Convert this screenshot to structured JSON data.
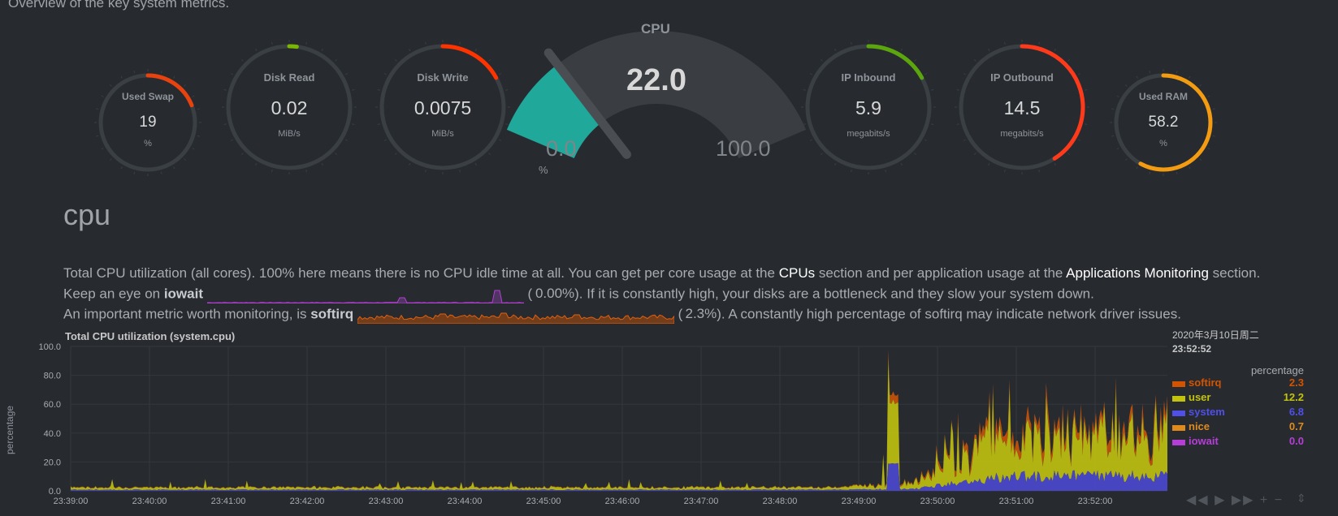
{
  "subtitle": "Overview of the key system metrics.",
  "gauges": [
    {
      "label": "Used Swap",
      "value": "19",
      "unit": "%",
      "fraction": 0.19,
      "color": "#e8420f"
    },
    {
      "label": "Disk Read",
      "value": "0.02",
      "unit": "MiB/s",
      "fraction": 0.02,
      "color": "#7ab800"
    },
    {
      "label": "Disk Write",
      "value": "0.0075",
      "unit": "MiB/s",
      "fraction": 0.17,
      "color": "#ff3300"
    },
    {
      "label": "IP Inbound",
      "value": "5.9",
      "unit": "megabits/s",
      "fraction": 0.17,
      "color": "#5ba50d"
    },
    {
      "label": "IP Outbound",
      "value": "14.5",
      "unit": "megabits/s",
      "fraction": 0.41,
      "color": "#ff3a1a"
    },
    {
      "label": "Used RAM",
      "value": "58.2",
      "unit": "%",
      "fraction": 0.58,
      "color": "#f39c12"
    }
  ],
  "cpu_gauge": {
    "title": "CPU",
    "value": "22.0",
    "min": "0.0",
    "max": "100.0",
    "unit": "%",
    "fraction": 0.22,
    "color": "#20a89a"
  },
  "section": {
    "title": "cpu",
    "line1_a": "Total CPU utilization (all cores). 100% here means there is no CPU idle time at all. You can get per core usage at the ",
    "line1_link1": "CPUs",
    "line1_b": " section and per application usage at the ",
    "line1_link2": "Applications Monitoring",
    "line1_c": " section.",
    "line2_a": "Keep an eye on ",
    "line2_bold": "iowait",
    "line2_paren": "(",
    "line2_val": "0.00%",
    "line2_c": "). If it is constantly high, your disks are a bottleneck and they slow your system down.",
    "line3_a": "An important metric worth monitoring, is ",
    "line3_bold": "softirq",
    "line3_paren": "(",
    "line3_val": "2.3%",
    "line3_c": "). A constantly high percentage of softirq may indicate network driver issues."
  },
  "chart": {
    "title": "Total CPU utilization (system.cpu)",
    "ylabel": "percentage",
    "legend_date": "2020年3月10日周二",
    "legend_time": "23:52:52",
    "legend_units": "percentage",
    "legend": [
      {
        "name": "softirq",
        "value": "2.3",
        "color": "#d35400"
      },
      {
        "name": "user",
        "value": "12.2",
        "color": "#c3c30c"
      },
      {
        "name": "system",
        "value": "6.8",
        "color": "#5050e8"
      },
      {
        "name": "nice",
        "value": "0.7",
        "color": "#e08a1e"
      },
      {
        "name": "iowait",
        "value": "0.0",
        "color": "#b63ed6"
      }
    ]
  },
  "chart_data": {
    "type": "area",
    "title": "Total CPU utilization (system.cpu)",
    "ylabel": "percentage",
    "ylim": [
      0,
      100
    ],
    "yticks": [
      "100.0",
      "80.0",
      "60.0",
      "40.0",
      "20.0",
      "0.0"
    ],
    "x": [
      "23:39:00",
      "23:40:00",
      "23:41:00",
      "23:42:00",
      "23:43:00",
      "23:44:00",
      "23:45:00",
      "23:46:00",
      "23:47:00",
      "23:48:00",
      "23:49:00",
      "23:50:00",
      "23:51:00",
      "23:52:00"
    ],
    "series": [
      {
        "name": "system",
        "values": [
          0.8,
          0.8,
          0.8,
          0.8,
          0.8,
          0.8,
          0.8,
          0.8,
          0.8,
          0.8,
          1.2,
          9.0,
          10.0,
          10.0
        ]
      },
      {
        "name": "user",
        "values": [
          1.5,
          1.5,
          1.5,
          1.5,
          1.5,
          1.5,
          1.5,
          1.5,
          1.5,
          1.5,
          4.0,
          24.0,
          25.0,
          24.0
        ]
      },
      {
        "name": "softirq",
        "values": [
          0.3,
          0.3,
          0.3,
          0.3,
          0.3,
          0.3,
          0.3,
          0.3,
          0.3,
          0.3,
          0.8,
          6.0,
          5.0,
          5.5
        ]
      },
      {
        "name": "nice",
        "values": [
          0.1,
          0.1,
          0.1,
          0.1,
          0.1,
          0.1,
          0.1,
          0.1,
          0.1,
          0.1,
          0.2,
          0.6,
          0.7,
          0.7
        ]
      },
      {
        "name": "iowait",
        "values": [
          0,
          0,
          0,
          0,
          0,
          0,
          0,
          0,
          0,
          0,
          0,
          0,
          0,
          0
        ]
      }
    ],
    "legend_values": {
      "softirq": 2.3,
      "user": 12.2,
      "system": 6.8,
      "nice": 0.7,
      "iowait": 0.0
    }
  },
  "controls": {
    "prev": "◀◀",
    "play": "▶",
    "next": "▶▶",
    "zoom_in": "+",
    "zoom_out": "−",
    "resize": "⇕"
  }
}
